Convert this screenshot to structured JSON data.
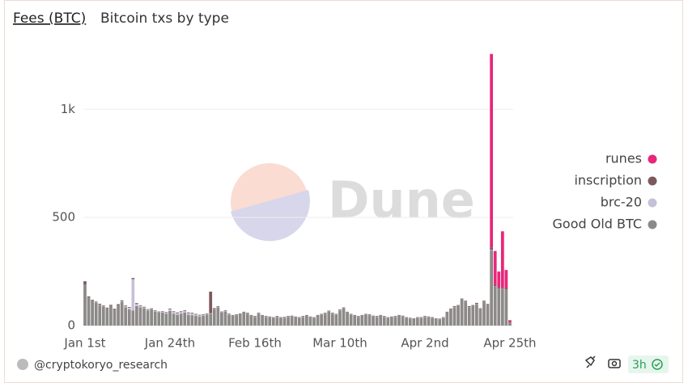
{
  "header": {
    "title": "Fees (BTC)",
    "subtitle": "Bitcoin txs by type"
  },
  "footer": {
    "author": "@cryptokoryo_research",
    "age": "3h"
  },
  "watermark": "Dune",
  "chart_data": {
    "type": "stacked_bar",
    "categories": [
      "Jan 1st",
      null,
      null,
      null,
      null,
      null,
      null,
      null,
      null,
      null,
      null,
      null,
      null,
      null,
      null,
      null,
      null,
      null,
      null,
      null,
      null,
      null,
      null,
      "Jan 24th",
      null,
      null,
      null,
      null,
      null,
      null,
      null,
      null,
      null,
      null,
      null,
      null,
      null,
      null,
      null,
      null,
      null,
      null,
      null,
      null,
      null,
      null,
      "Feb 16th",
      null,
      null,
      null,
      null,
      null,
      null,
      null,
      null,
      null,
      null,
      null,
      null,
      null,
      null,
      null,
      null,
      null,
      null,
      null,
      null,
      null,
      null,
      "Mar 10th",
      null,
      null,
      null,
      null,
      null,
      null,
      null,
      null,
      null,
      null,
      null,
      null,
      null,
      null,
      null,
      null,
      null,
      null,
      null,
      null,
      null,
      null,
      "Apr 2nd",
      null,
      null,
      null,
      null,
      null,
      null,
      null,
      null,
      null,
      null,
      null,
      null,
      null,
      null,
      null,
      null,
      null,
      null,
      null,
      null,
      null,
      null,
      "Apr 25th"
    ],
    "series": [
      {
        "name": "runes",
        "color": "#e8267a",
        "values": [
          0,
          0,
          0,
          0,
          0,
          0,
          0,
          0,
          0,
          0,
          0,
          0,
          0,
          0,
          0,
          0,
          0,
          0,
          0,
          0,
          0,
          0,
          0,
          0,
          0,
          0,
          0,
          0,
          0,
          0,
          0,
          0,
          0,
          0,
          0,
          0,
          0,
          0,
          0,
          0,
          0,
          0,
          0,
          0,
          0,
          0,
          0,
          0,
          0,
          0,
          0,
          0,
          0,
          0,
          0,
          0,
          0,
          0,
          0,
          0,
          0,
          0,
          0,
          0,
          0,
          0,
          0,
          0,
          0,
          0,
          0,
          0,
          0,
          0,
          0,
          0,
          0,
          0,
          0,
          0,
          0,
          0,
          0,
          0,
          0,
          0,
          0,
          0,
          0,
          0,
          0,
          0,
          0,
          0,
          0,
          0,
          0,
          0,
          0,
          0,
          0,
          0,
          0,
          0,
          0,
          0,
          0,
          0,
          0,
          0,
          895,
          156,
          73,
          259,
          85,
          8
        ]
      },
      {
        "name": "inscription",
        "color": "#7b5a5d",
        "values": [
          15,
          5,
          4,
          4,
          4,
          3,
          3,
          4,
          3,
          4,
          4,
          3,
          3,
          5,
          4,
          3,
          3,
          3,
          3,
          3,
          3,
          3,
          3,
          3,
          3,
          3,
          3,
          3,
          3,
          3,
          3,
          3,
          3,
          3,
          100,
          4,
          3,
          3,
          3,
          3,
          3,
          3,
          3,
          3,
          3,
          3,
          3,
          3,
          3,
          3,
          3,
          3,
          3,
          3,
          3,
          3,
          3,
          3,
          3,
          3,
          3,
          3,
          3,
          3,
          3,
          3,
          3,
          3,
          3,
          3,
          3,
          3,
          3,
          3,
          3,
          3,
          3,
          3,
          3,
          3,
          3,
          3,
          3,
          3,
          3,
          3,
          3,
          3,
          3,
          3,
          3,
          3,
          3,
          3,
          3,
          3,
          3,
          3,
          3,
          3,
          4,
          4,
          4,
          4,
          4,
          4,
          4,
          4,
          4,
          4,
          10,
          8,
          6,
          6,
          6,
          2
        ]
      },
      {
        "name": "brc-20",
        "color": "#c6c0d8",
        "values": [
          0,
          0,
          0,
          2,
          2,
          2,
          0,
          0,
          0,
          0,
          3,
          5,
          8,
          145,
          10,
          6,
          4,
          3,
          2,
          2,
          2,
          3,
          4,
          8,
          8,
          8,
          8,
          8,
          8,
          8,
          6,
          5,
          4,
          3,
          2,
          2,
          2,
          2,
          2,
          2,
          1,
          1,
          1,
          1,
          1,
          1,
          1,
          1,
          1,
          1,
          1,
          1,
          1,
          1,
          1,
          1,
          1,
          1,
          1,
          1,
          1,
          1,
          1,
          1,
          1,
          1,
          1,
          1,
          1,
          1,
          1,
          1,
          1,
          1,
          1,
          1,
          1,
          1,
          1,
          1,
          1,
          1,
          1,
          1,
          1,
          1,
          1,
          1,
          1,
          1,
          1,
          1,
          1,
          1,
          1,
          1,
          1,
          1,
          1,
          1,
          1,
          1,
          1,
          1,
          1,
          1,
          1,
          1,
          1,
          1,
          1,
          1,
          1,
          1,
          1,
          0
        ]
      },
      {
        "name": "Good Old BTC",
        "color": "#8c8a88",
        "values": [
          190,
          130,
          115,
          105,
          95,
          88,
          80,
          92,
          75,
          95,
          110,
          85,
          75,
          70,
          90,
          85,
          80,
          70,
          75,
          65,
          60,
          60,
          55,
          68,
          55,
          50,
          55,
          60,
          50,
          48,
          45,
          42,
          45,
          50,
          55,
          75,
          85,
          60,
          65,
          50,
          45,
          48,
          52,
          60,
          55,
          45,
          40,
          55,
          45,
          40,
          38,
          35,
          40,
          35,
          36,
          40,
          42,
          38,
          35,
          40,
          45,
          38,
          35,
          45,
          50,
          55,
          65,
          55,
          50,
          70,
          80,
          60,
          50,
          45,
          40,
          45,
          50,
          48,
          42,
          40,
          45,
          40,
          35,
          38,
          40,
          45,
          42,
          35,
          32,
          30,
          35,
          35,
          40,
          38,
          35,
          30,
          28,
          35,
          60,
          75,
          85,
          90,
          120,
          110,
          85,
          90,
          100,
          75,
          110,
          95,
          350,
          180,
          170,
          170,
          165,
          15
        ]
      }
    ],
    "ylim": [
      0,
      1300
    ],
    "yticks": [
      0,
      500,
      {
        "value": 1000,
        "label": "1k"
      }
    ],
    "grid": true,
    "legend": "right"
  }
}
